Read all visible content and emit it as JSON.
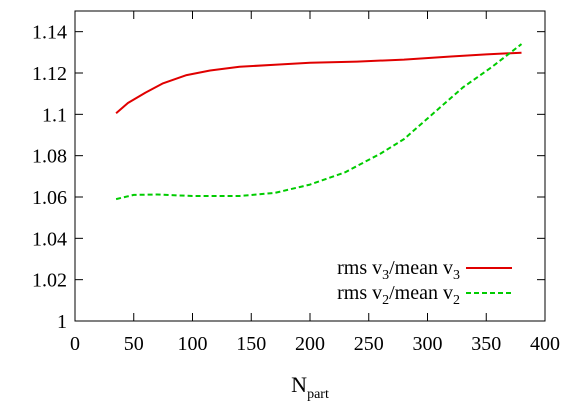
{
  "chart_data": {
    "type": "line",
    "xlabel": "N",
    "xlabel_sub": "part",
    "ylabel": "",
    "xlim": [
      0,
      400
    ],
    "ylim": [
      1,
      1.15
    ],
    "xticks": [
      0,
      50,
      100,
      150,
      200,
      250,
      300,
      350,
      400
    ],
    "xtick_labels": [
      "0",
      "50",
      "100",
      "150",
      "200",
      "250",
      "300",
      "350",
      "400"
    ],
    "yticks": [
      1,
      1.02,
      1.04,
      1.06,
      1.08,
      1.1,
      1.12,
      1.14
    ],
    "ytick_labels": [
      "1",
      "1.02",
      "1.04",
      "1.06",
      "1.08",
      "1.1",
      "1.12",
      "1.14"
    ],
    "grid": false,
    "legend_position": "bottom-right",
    "series": [
      {
        "legend": {
          "pre": "rms v",
          "sub1": "3",
          "mid": "/mean v",
          "sub2": "3"
        },
        "color": "#e00000",
        "dash": "solid",
        "x": [
          35,
          45,
          60,
          75,
          95,
          115,
          140,
          170,
          200,
          240,
          280,
          320,
          350,
          380
        ],
        "y": [
          1.1005,
          1.1055,
          1.1105,
          1.115,
          1.119,
          1.1212,
          1.123,
          1.124,
          1.125,
          1.1255,
          1.1265,
          1.128,
          1.129,
          1.1298
        ]
      },
      {
        "legend": {
          "pre": "rms v",
          "sub1": "2",
          "mid": "/mean v",
          "sub2": "2"
        },
        "color": "#00cc00",
        "dash": "dashed",
        "x": [
          35,
          50,
          70,
          100,
          140,
          170,
          200,
          230,
          260,
          280,
          300,
          330,
          355,
          380
        ],
        "y": [
          1.059,
          1.061,
          1.0612,
          1.0605,
          1.0605,
          1.062,
          1.066,
          1.072,
          1.081,
          1.088,
          1.098,
          1.113,
          1.123,
          1.134
        ]
      }
    ]
  }
}
